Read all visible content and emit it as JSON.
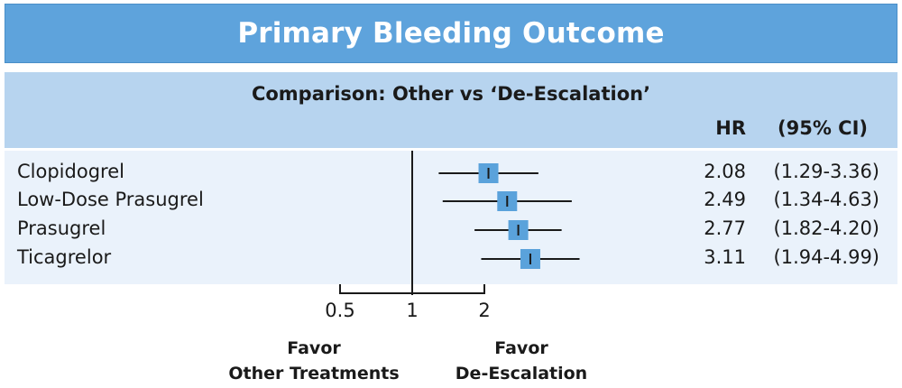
{
  "title": "Primary Bleeding Outcome",
  "subtitle": "Comparison: Other vs ‘De-Escalation’",
  "columns": {
    "hr": "HR",
    "ci": "(95% CI)"
  },
  "favor_left": {
    "line1": "Favor",
    "line2": "Other Treatments"
  },
  "favor_right": {
    "line1": "Favor",
    "line2": "De-Escalation"
  },
  "colors": {
    "banner": "#5ea3dc",
    "marker": "#5aa2db",
    "panel": "#b7d4ef",
    "rows": "#eaf2fb"
  },
  "chart_data": {
    "type": "scatter",
    "x_scale": "log",
    "xticks": [
      0.5,
      1,
      2
    ],
    "xtick_labels": [
      "0.5",
      "1",
      "2"
    ],
    "reference_line": 1,
    "rows": [
      {
        "label": "Clopidogrel",
        "hr": 2.08,
        "ci_low": 1.29,
        "ci_high": 3.36,
        "hr_text": "2.08",
        "ci_text": "(1.29-3.36)"
      },
      {
        "label": "Low-Dose Prasugrel",
        "hr": 2.49,
        "ci_low": 1.34,
        "ci_high": 4.63,
        "hr_text": "2.49",
        "ci_text": "(1.34-4.63)"
      },
      {
        "label": "Prasugrel",
        "hr": 2.77,
        "ci_low": 1.82,
        "ci_high": 4.2,
        "hr_text": "2.77",
        "ci_text": "(1.82-4.20)"
      },
      {
        "label": "Ticagrelor",
        "hr": 3.11,
        "ci_low": 1.94,
        "ci_high": 4.99,
        "hr_text": "3.11",
        "ci_text": "(1.94-4.99)"
      }
    ]
  }
}
